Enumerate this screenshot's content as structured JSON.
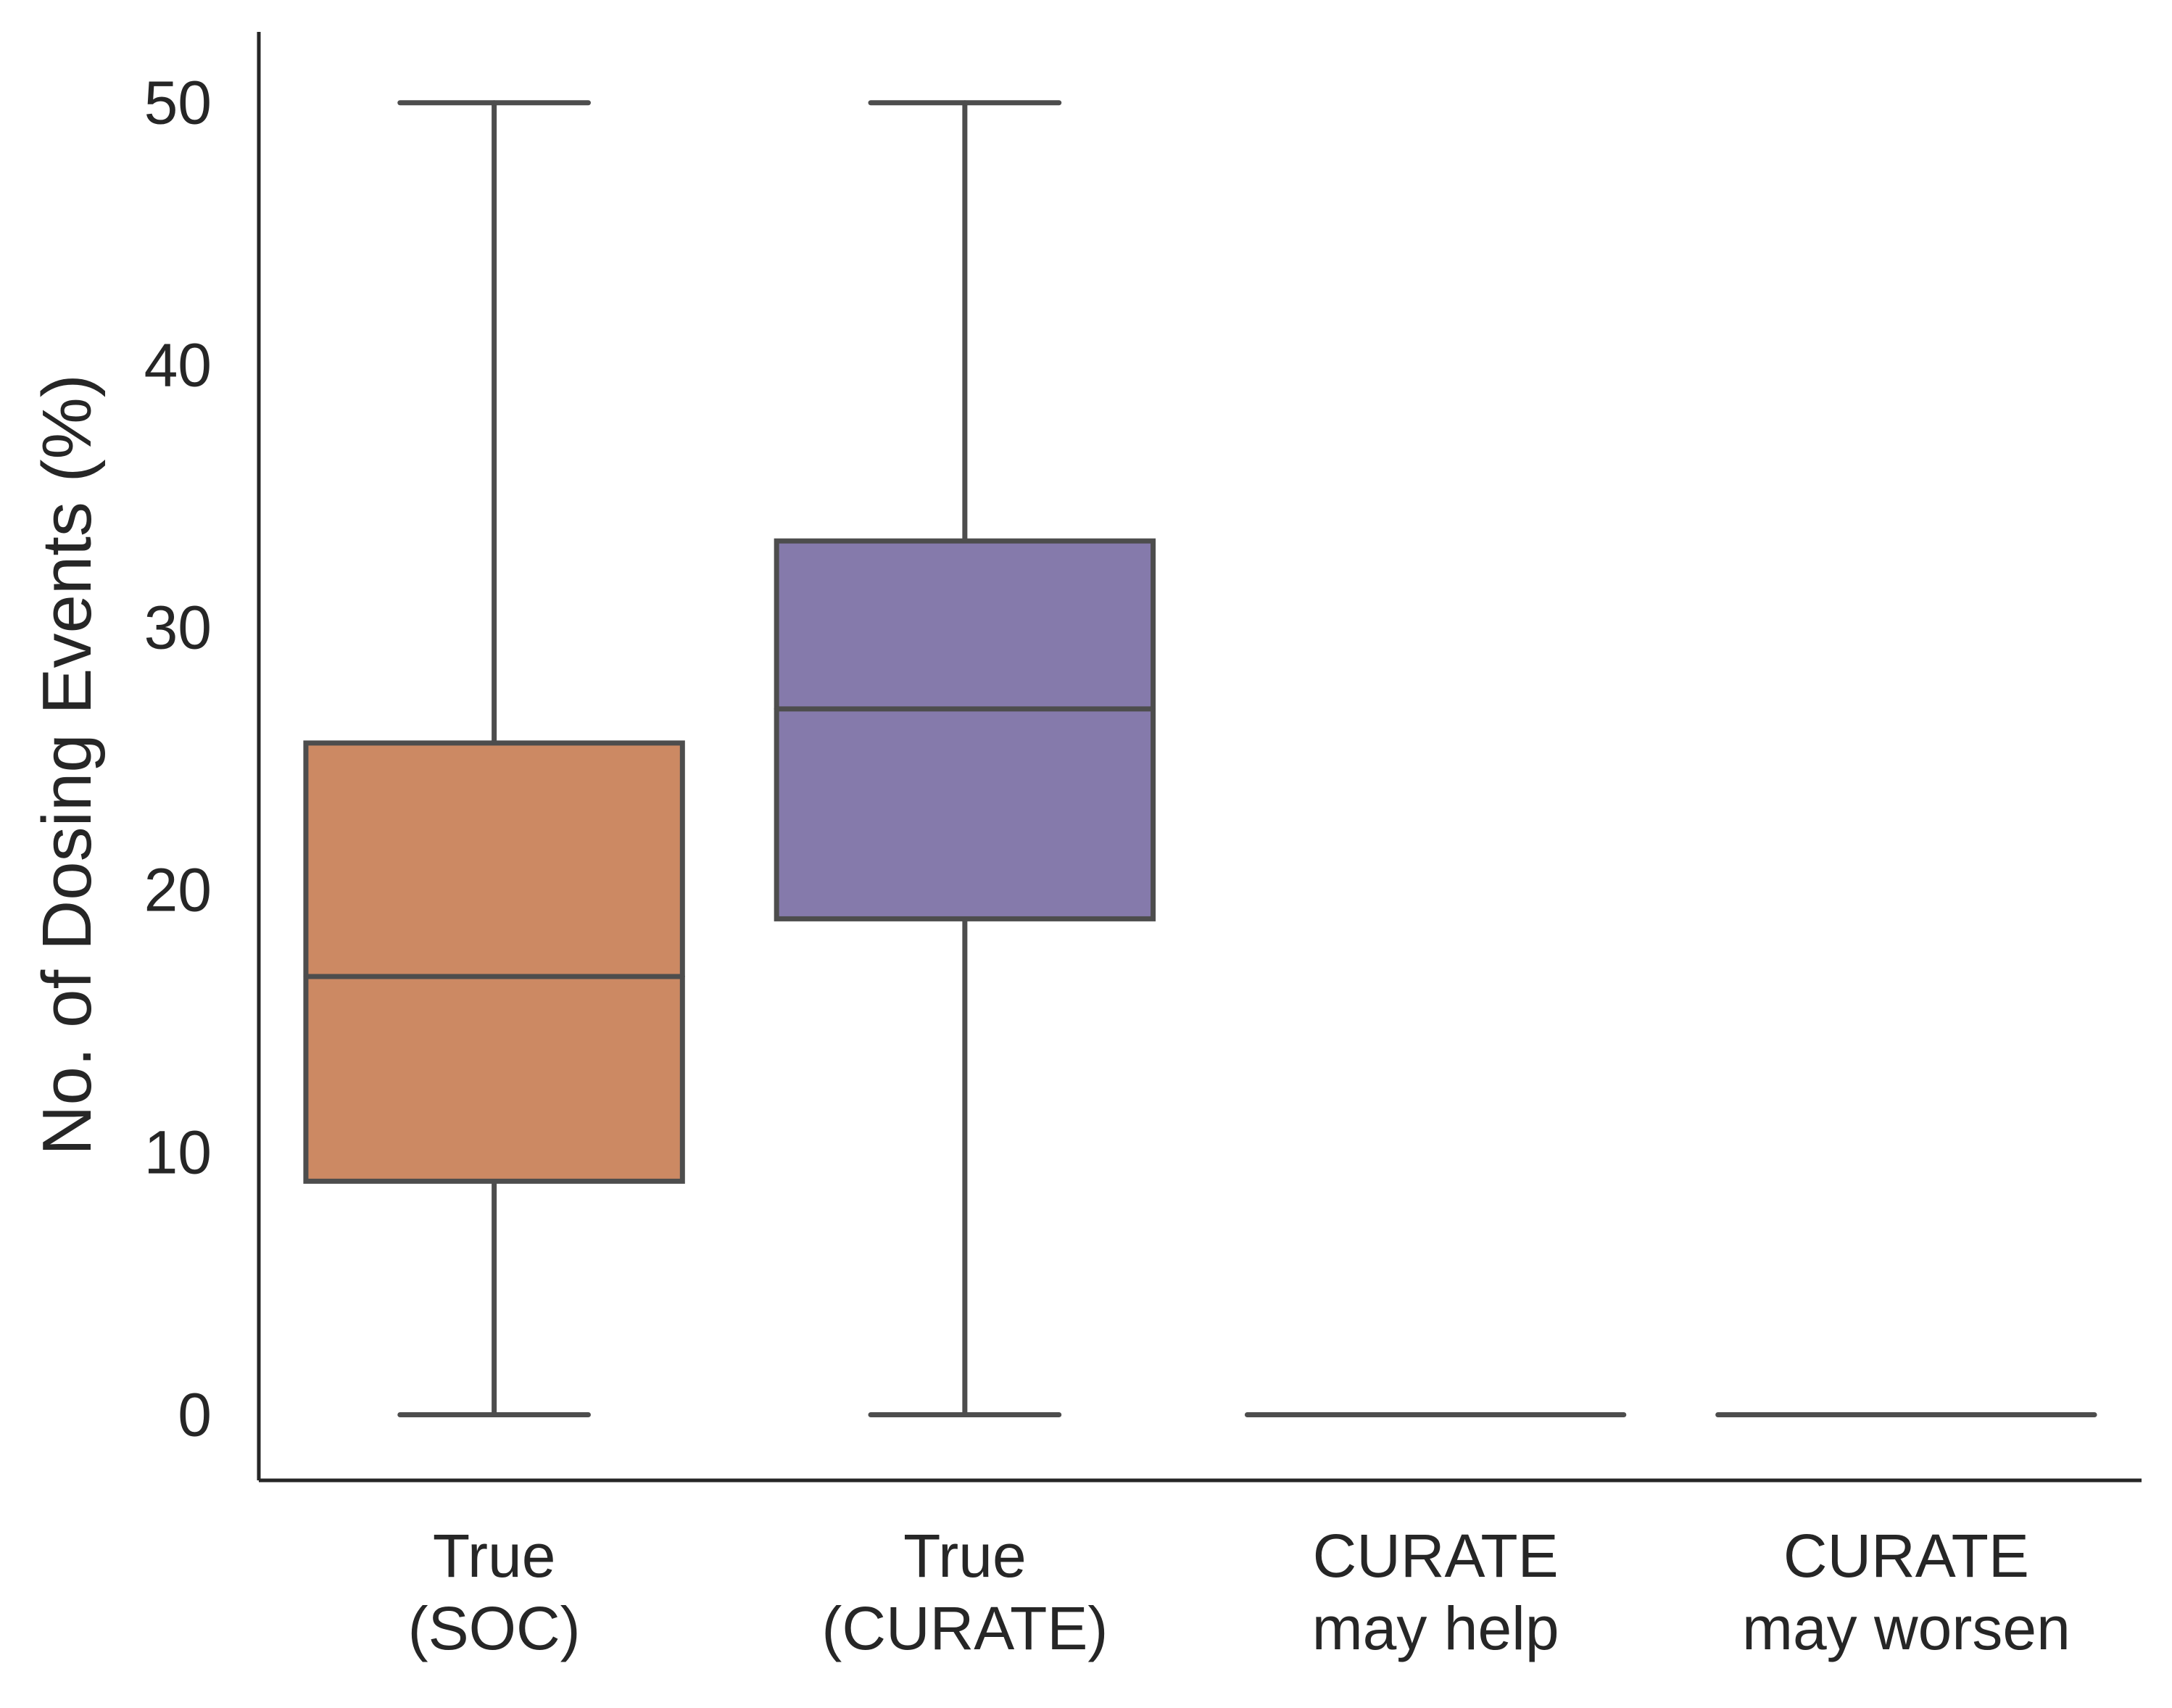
{
  "chart_data": {
    "type": "box",
    "ylabel": "No. of Dosing Events (%)",
    "xlabel": "",
    "ylim": [
      -2.5,
      52.7
    ],
    "yticks": [
      0,
      10,
      20,
      30,
      40,
      50
    ],
    "grid": false,
    "categories": [
      {
        "lines": [
          "True",
          "(SOC)"
        ],
        "color": "#cc8963",
        "whisker_low": 0,
        "q1": 8.9,
        "median": 16.7,
        "q3": 25.6,
        "whisker_high": 50
      },
      {
        "lines": [
          "True",
          "(CURATE)"
        ],
        "color": "#857aab",
        "whisker_low": 0,
        "q1": 18.9,
        "median": 26.9,
        "q3": 33.3,
        "whisker_high": 50
      },
      {
        "lines": [
          "CURATE",
          "may help"
        ],
        "color": "#4d4d4d",
        "whisker_low": 0,
        "q1": 0,
        "median": 0,
        "q3": 0,
        "whisker_high": 0
      },
      {
        "lines": [
          "CURATE",
          "may worsen"
        ],
        "color": "#4d4d4d",
        "whisker_low": 0,
        "q1": 0,
        "median": 0,
        "q3": 0,
        "whisker_high": 0
      }
    ]
  }
}
